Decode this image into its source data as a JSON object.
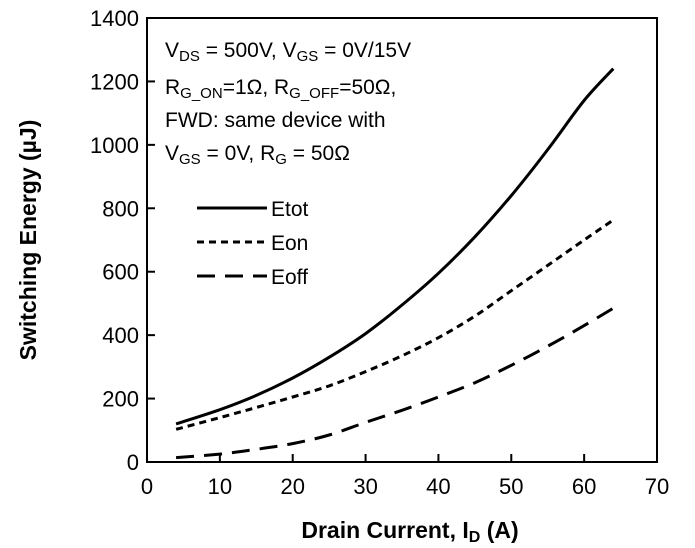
{
  "chart_data": {
    "type": "line",
    "xlabel": {
      "main": "Drain Current, I",
      "sub": "D",
      "unit": " (A)"
    },
    "ylabel": "Switching Energy (µJ)",
    "xlim": [
      0,
      70
    ],
    "ylim": [
      0,
      1400
    ],
    "xticks": [
      0,
      10,
      20,
      30,
      40,
      50,
      60,
      70
    ],
    "yticks": [
      0,
      200,
      400,
      600,
      800,
      1000,
      1200,
      1400
    ],
    "grid": false,
    "legend_position": "left-middle",
    "annotation_lines": [
      [
        {
          "t": "V"
        },
        {
          "t": "DS",
          "sub": true
        },
        {
          "t": " = 500V, V"
        },
        {
          "t": "GS",
          "sub": true
        },
        {
          "t": " = 0V/15V"
        }
      ],
      [
        {
          "t": "R"
        },
        {
          "t": "G_ON",
          "sub": true
        },
        {
          "t": "=1Ω, R"
        },
        {
          "t": "G_OFF",
          "sub": true
        },
        {
          "t": "=50Ω,"
        }
      ],
      [
        {
          "t": "FWD: same device with"
        }
      ],
      [
        {
          "t": "V"
        },
        {
          "t": "GS",
          "sub": true
        },
        {
          "t": " = 0V, R"
        },
        {
          "t": "G",
          "sub": true
        },
        {
          "t": " = 50Ω"
        }
      ]
    ],
    "series": [
      {
        "name": "Etot",
        "dash": "solid",
        "x": [
          4,
          10,
          15,
          20,
          25,
          30,
          35,
          40,
          45,
          50,
          55,
          60,
          64
        ],
        "y": [
          120,
          165,
          210,
          265,
          330,
          405,
          495,
          595,
          710,
          840,
          985,
          1140,
          1240
        ]
      },
      {
        "name": "Eon",
        "dash": "short",
        "x": [
          4,
          10,
          15,
          20,
          25,
          30,
          35,
          40,
          45,
          50,
          55,
          60,
          64
        ],
        "y": [
          103,
          140,
          172,
          205,
          240,
          285,
          335,
          392,
          460,
          540,
          620,
          700,
          763
        ]
      },
      {
        "name": "Eoff",
        "dash": "long",
        "x": [
          4,
          10,
          15,
          20,
          25,
          30,
          35,
          40,
          45,
          50,
          55,
          60,
          64
        ],
        "y": [
          14,
          25,
          40,
          58,
          85,
          125,
          163,
          205,
          250,
          305,
          365,
          430,
          485
        ]
      }
    ]
  }
}
